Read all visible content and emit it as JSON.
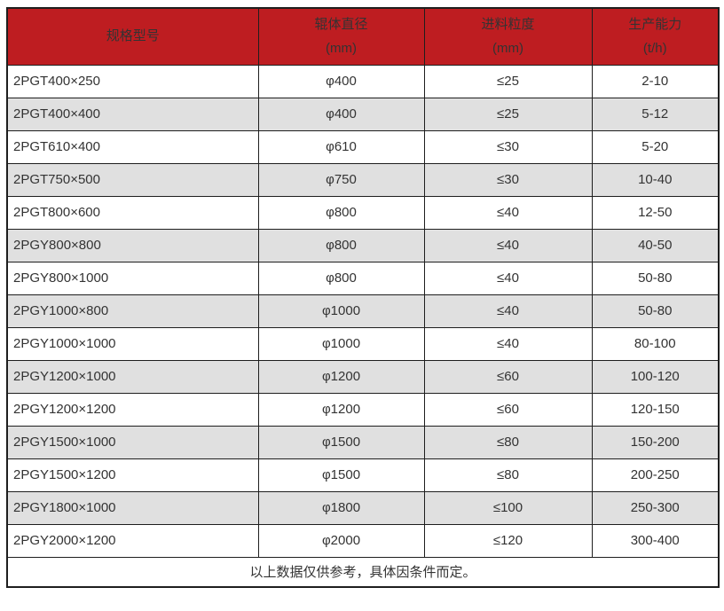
{
  "chart_data": {
    "type": "table",
    "columns": [
      {
        "label": "规格型号",
        "unit": ""
      },
      {
        "label": "辊体直径",
        "unit": "(mm)"
      },
      {
        "label": "进料粒度",
        "unit": "(mm)"
      },
      {
        "label": "生产能力",
        "unit": "(t/h)"
      }
    ],
    "rows": [
      [
        "2PGT400×250",
        "φ400",
        "≤25",
        "2-10"
      ],
      [
        "2PGT400×400",
        "φ400",
        "≤25",
        "5-12"
      ],
      [
        "2PGT610×400",
        "φ610",
        "≤30",
        "5-20"
      ],
      [
        "2PGT750×500",
        "φ750",
        "≤30",
        "10-40"
      ],
      [
        "2PGT800×600",
        "φ800",
        "≤40",
        "12-50"
      ],
      [
        "2PGY800×800",
        "φ800",
        "≤40",
        "40-50"
      ],
      [
        "2PGY800×1000",
        "φ800",
        "≤40",
        "50-80"
      ],
      [
        "2PGY1000×800",
        "φ1000",
        "≤40",
        "50-80"
      ],
      [
        "2PGY1000×1000",
        "φ1000",
        "≤40",
        "80-100"
      ],
      [
        "2PGY1200×1000",
        "φ1200",
        "≤60",
        "100-120"
      ],
      [
        "2PGY1200×1200",
        "φ1200",
        "≤60",
        "120-150"
      ],
      [
        "2PGY1500×1000",
        "φ1500",
        "≤80",
        "150-200"
      ],
      [
        "2PGY1500×1200",
        "φ1500",
        "≤80",
        "200-250"
      ],
      [
        "2PGY1800×1000",
        "φ1800",
        "≤100",
        "250-300"
      ],
      [
        "2PGY2000×1200",
        "φ2000",
        "≤120",
        "300-400"
      ]
    ],
    "footer_note": "以上数据仅供参考，具体因条件而定。"
  },
  "colors": {
    "header_bg": "#BE1D21",
    "header_text": "#FFFFFF",
    "row_even_bg": "#E0E0E0",
    "row_odd_bg": "#FFFFFF",
    "border": "#1E1E1E",
    "body_text": "#333333"
  }
}
